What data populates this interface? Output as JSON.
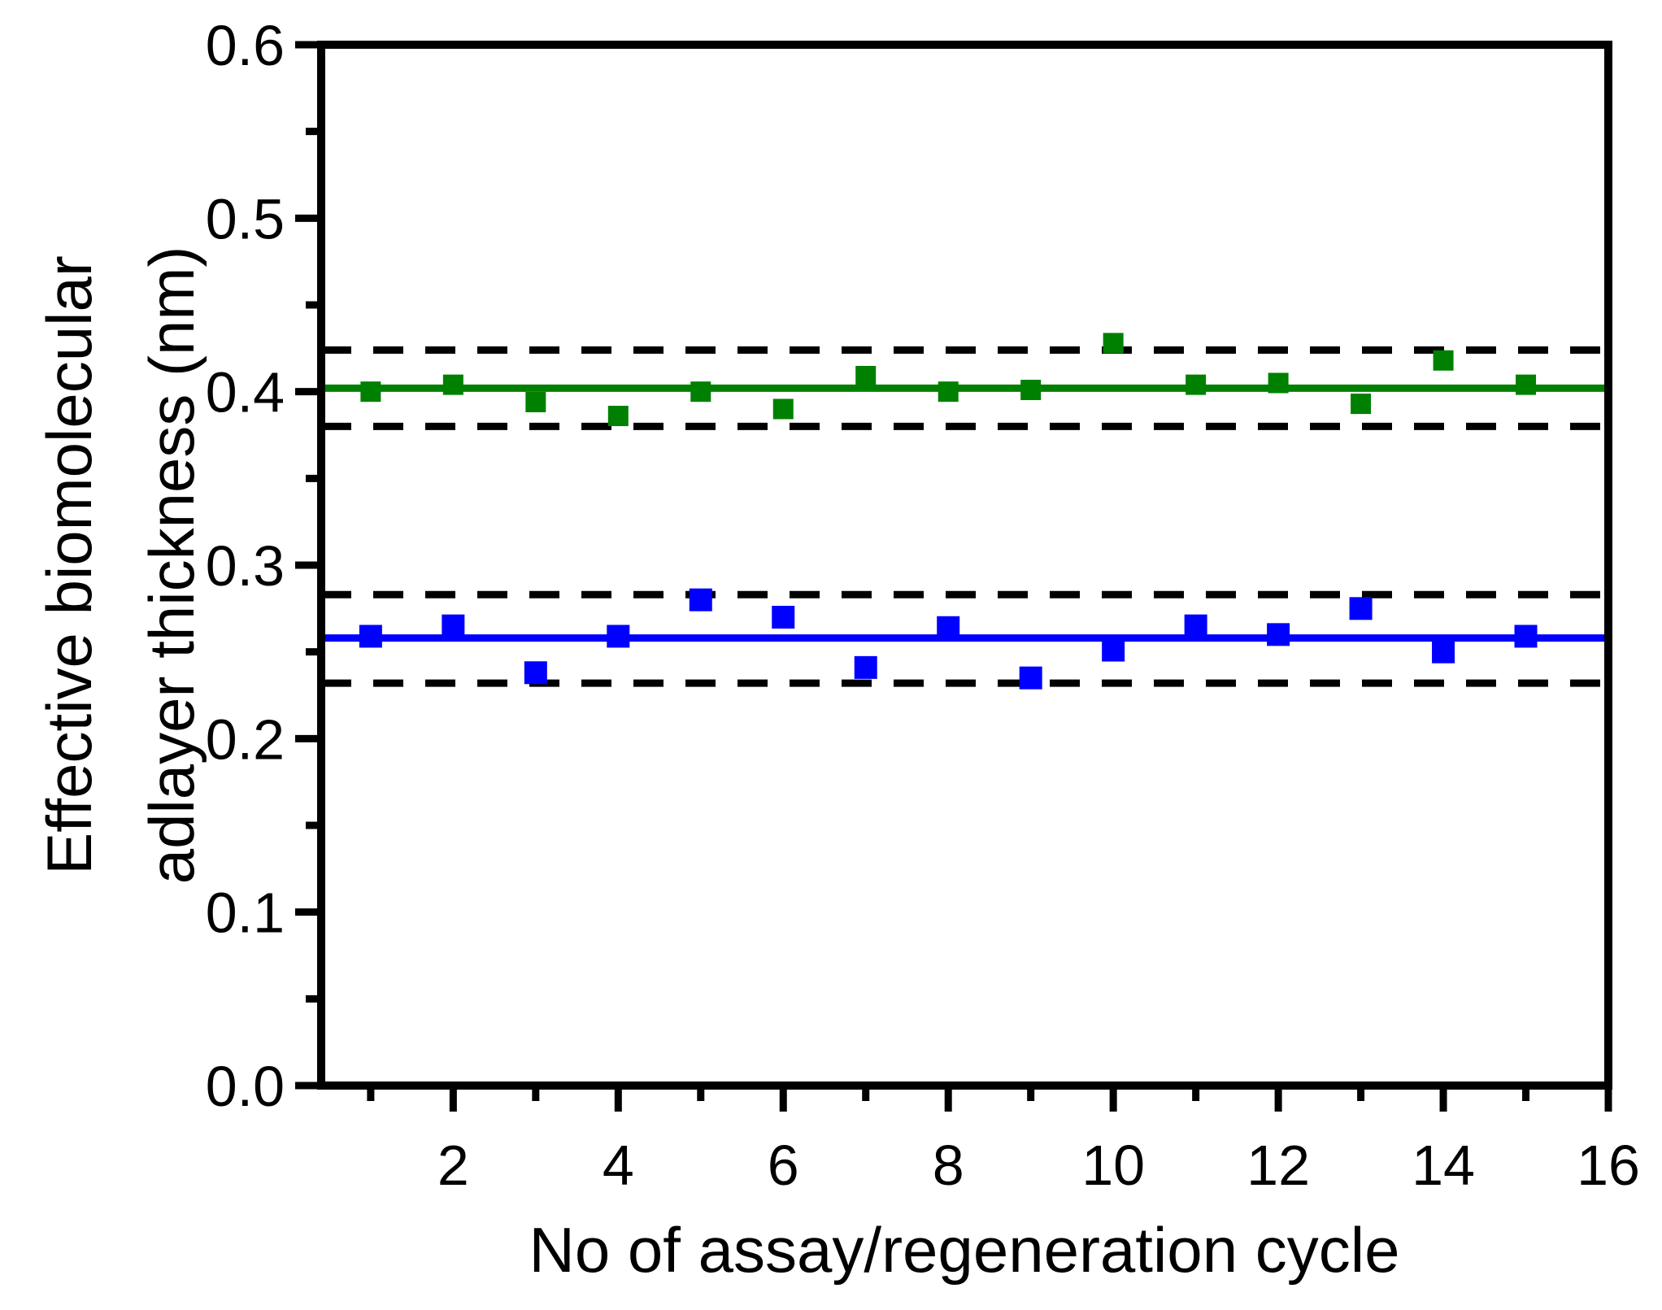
{
  "figure": {
    "background": "#ffffff"
  },
  "chart_data": {
    "type": "scatter",
    "title": "",
    "xlabel": "No of assay/regeneration cycle",
    "ylabel_lines": [
      "Effective biomolecular",
      "adlayer thickness (nm)"
    ],
    "xlim": [
      0.4,
      16
    ],
    "ylim": [
      0.0,
      0.6
    ],
    "grid": false,
    "legend": null,
    "frame": "box",
    "x_major_ticks": [
      2,
      4,
      6,
      8,
      10,
      12,
      14,
      16
    ],
    "x_major_tick_labels": [
      "2",
      "4",
      "6",
      "8",
      "10",
      "12",
      "14",
      "16"
    ],
    "x_minor_ticks": [
      1,
      3,
      5,
      7,
      9,
      11,
      13,
      15
    ],
    "y_major_ticks": [
      0.0,
      0.1,
      0.2,
      0.3,
      0.4,
      0.5,
      0.6
    ],
    "y_major_tick_labels": [
      "0.0",
      "0.1",
      "0.2",
      "0.3",
      "0.4",
      "0.5",
      "0.6"
    ],
    "y_minor_ticks": [
      0.05,
      0.15,
      0.25,
      0.35,
      0.45,
      0.55
    ],
    "colors": {
      "green_series": "#008000",
      "blue_series": "#0000ff",
      "dashed_reference": "#000000",
      "axis": "#000000"
    },
    "x": [
      1,
      2,
      3,
      4,
      5,
      6,
      7,
      8,
      9,
      10,
      11,
      12,
      13,
      14,
      15
    ],
    "series": [
      {
        "key": "green",
        "color": "#008000",
        "marker": "square",
        "marker_size": 25,
        "values": [
          0.4,
          0.404,
          0.394,
          0.386,
          0.4,
          0.39,
          0.409,
          0.4,
          0.401,
          0.428,
          0.404,
          0.405,
          0.393,
          0.418,
          0.404
        ],
        "mean_line": 0.402,
        "upper_dashed_line": 0.424,
        "lower_dashed_line": 0.38
      },
      {
        "key": "blue",
        "color": "#0000ff",
        "marker": "square",
        "marker_size": 28,
        "values": [
          0.259,
          0.265,
          0.238,
          0.259,
          0.28,
          0.27,
          0.241,
          0.264,
          0.235,
          0.251,
          0.265,
          0.26,
          0.275,
          0.25,
          0.259
        ],
        "mean_line": 0.258,
        "upper_dashed_line": 0.283,
        "lower_dashed_line": 0.232
      }
    ]
  }
}
